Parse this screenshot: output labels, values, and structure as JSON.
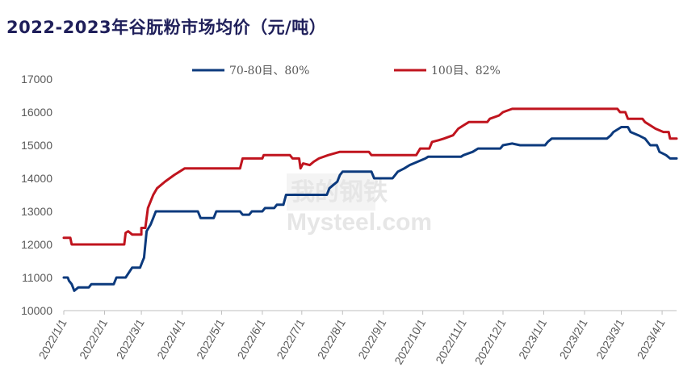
{
  "title": "2022-2023年谷朊粉市场均价（元/吨）",
  "watermark": {
    "cn": "我的钢铁",
    "en": "Mysteel.com"
  },
  "colors": {
    "series_70_80": "#0c3a7d",
    "series_100": "#c0141e",
    "axis": "#bfbfbf",
    "title": "#1f1f5a"
  },
  "chart_data": {
    "type": "line",
    "title": "2022-2023年谷朊粉市场均价（元/吨）",
    "xlabel": "",
    "ylabel": "",
    "ylim": [
      10000,
      17000
    ],
    "yticks": [
      10000,
      11000,
      12000,
      13000,
      14000,
      15000,
      16000,
      17000
    ],
    "ytick_labels": [
      "10000",
      "11000",
      "12000",
      "13000",
      "14000",
      "15000",
      "16000",
      "17000"
    ],
    "xlim": [
      "2022-01-01",
      "2023-04-12"
    ],
    "xtick_labels": [
      "2022/1/1",
      "2022/2/1",
      "2022/3/1",
      "2022/4/1",
      "2022/5/1",
      "2022/6/1",
      "2022/7/1",
      "2022/8/1",
      "2022/9/1",
      "2022/10/1",
      "2022/11/1",
      "2022/12/1",
      "2023/1/1",
      "2023/2/1",
      "2023/3/1",
      "2023/4/1"
    ],
    "xtick_dates": [
      "2022-01-01",
      "2022-02-01",
      "2022-03-01",
      "2022-04-01",
      "2022-05-01",
      "2022-06-01",
      "2022-07-01",
      "2022-08-01",
      "2022-09-01",
      "2022-10-01",
      "2022-11-01",
      "2022-12-01",
      "2023-01-01",
      "2023-02-01",
      "2023-03-01",
      "2023-04-01"
    ],
    "grid": false,
    "legend_position": "top",
    "series": [
      {
        "name": "70-80目、80%",
        "color": "#0c3a7d",
        "points": [
          [
            "2022-01-01",
            11000
          ],
          [
            "2022-01-04",
            11000
          ],
          [
            "2022-01-05",
            10900
          ],
          [
            "2022-01-07",
            10800
          ],
          [
            "2022-01-09",
            10600
          ],
          [
            "2022-01-12",
            10700
          ],
          [
            "2022-01-20",
            10700
          ],
          [
            "2022-01-22",
            10800
          ],
          [
            "2022-02-08",
            10800
          ],
          [
            "2022-02-10",
            11000
          ],
          [
            "2022-02-17",
            11000
          ],
          [
            "2022-02-22",
            11300
          ],
          [
            "2022-02-28",
            11300
          ],
          [
            "2022-03-02",
            11500
          ],
          [
            "2022-03-03",
            11600
          ],
          [
            "2022-03-05",
            12400
          ],
          [
            "2022-03-08",
            12600
          ],
          [
            "2022-03-10",
            12800
          ],
          [
            "2022-03-12",
            13000
          ],
          [
            "2022-04-13",
            13000
          ],
          [
            "2022-04-15",
            12800
          ],
          [
            "2022-04-25",
            12800
          ],
          [
            "2022-04-27",
            13000
          ],
          [
            "2022-05-15",
            13000
          ],
          [
            "2022-05-17",
            12900
          ],
          [
            "2022-05-22",
            12900
          ],
          [
            "2022-05-24",
            13000
          ],
          [
            "2022-06-01",
            13000
          ],
          [
            "2022-06-03",
            13100
          ],
          [
            "2022-06-10",
            13100
          ],
          [
            "2022-06-12",
            13200
          ],
          [
            "2022-06-17",
            13200
          ],
          [
            "2022-06-19",
            13500
          ],
          [
            "2022-07-20",
            13500
          ],
          [
            "2022-07-22",
            13700
          ],
          [
            "2022-07-25",
            13800
          ],
          [
            "2022-07-28",
            13900
          ],
          [
            "2022-07-30",
            14100
          ],
          [
            "2022-08-01",
            14200
          ],
          [
            "2022-08-23",
            14200
          ],
          [
            "2022-08-25",
            14000
          ],
          [
            "2022-09-08",
            14000
          ],
          [
            "2022-09-12",
            14200
          ],
          [
            "2022-09-17",
            14300
          ],
          [
            "2022-09-21",
            14400
          ],
          [
            "2022-09-27",
            14500
          ],
          [
            "2022-10-03",
            14600
          ],
          [
            "2022-10-05",
            14650
          ],
          [
            "2022-10-30",
            14650
          ],
          [
            "2022-11-01",
            14700
          ],
          [
            "2022-11-08",
            14800
          ],
          [
            "2022-11-12",
            14900
          ],
          [
            "2022-11-29",
            14900
          ],
          [
            "2022-12-01",
            15000
          ],
          [
            "2022-12-08",
            15050
          ],
          [
            "2022-12-14",
            15000
          ],
          [
            "2023-01-02",
            15000
          ],
          [
            "2023-01-04",
            15100
          ],
          [
            "2023-01-07",
            15200
          ],
          [
            "2023-02-18",
            15200
          ],
          [
            "2023-02-21",
            15300
          ],
          [
            "2023-02-23",
            15400
          ],
          [
            "2023-03-01",
            15550
          ],
          [
            "2023-03-06",
            15550
          ],
          [
            "2023-03-08",
            15400
          ],
          [
            "2023-03-14",
            15300
          ],
          [
            "2023-03-19",
            15200
          ],
          [
            "2023-03-23",
            15000
          ],
          [
            "2023-03-28",
            15000
          ],
          [
            "2023-03-30",
            14800
          ],
          [
            "2023-04-04",
            14700
          ],
          [
            "2023-04-07",
            14600
          ],
          [
            "2023-04-12",
            14600
          ]
        ]
      },
      {
        "name": "100目、82%",
        "color": "#c0141e",
        "points": [
          [
            "2022-01-01",
            12200
          ],
          [
            "2022-01-06",
            12200
          ],
          [
            "2022-01-07",
            12000
          ],
          [
            "2022-02-16",
            12000
          ],
          [
            "2022-02-17",
            12350
          ],
          [
            "2022-02-19",
            12400
          ],
          [
            "2022-02-22",
            12300
          ],
          [
            "2022-02-29",
            12300
          ],
          [
            "2022-03-01",
            12500
          ],
          [
            "2022-03-04",
            12500
          ],
          [
            "2022-03-06",
            13100
          ],
          [
            "2022-03-08",
            13300
          ],
          [
            "2022-03-10",
            13500
          ],
          [
            "2022-03-13",
            13700
          ],
          [
            "2022-03-19",
            13900
          ],
          [
            "2022-03-26",
            14100
          ],
          [
            "2022-04-03",
            14300
          ],
          [
            "2022-05-15",
            14300
          ],
          [
            "2022-05-17",
            14600
          ],
          [
            "2022-06-01",
            14600
          ],
          [
            "2022-06-02",
            14700
          ],
          [
            "2022-06-22",
            14700
          ],
          [
            "2022-06-24",
            14600
          ],
          [
            "2022-06-29",
            14600
          ],
          [
            "2022-06-30",
            14300
          ],
          [
            "2022-07-02",
            14450
          ],
          [
            "2022-07-07",
            14400
          ],
          [
            "2022-07-10",
            14500
          ],
          [
            "2022-07-14",
            14600
          ],
          [
            "2022-07-21",
            14700
          ],
          [
            "2022-07-30",
            14800
          ],
          [
            "2022-08-21",
            14800
          ],
          [
            "2022-08-23",
            14700
          ],
          [
            "2022-09-26",
            14700
          ],
          [
            "2022-09-29",
            14900
          ],
          [
            "2022-10-06",
            14900
          ],
          [
            "2022-10-08",
            15100
          ],
          [
            "2022-10-13",
            15150
          ],
          [
            "2022-10-17",
            15200
          ],
          [
            "2022-10-24",
            15300
          ],
          [
            "2022-10-28",
            15500
          ],
          [
            "2022-11-01",
            15600
          ],
          [
            "2022-11-05",
            15700
          ],
          [
            "2022-11-19",
            15700
          ],
          [
            "2022-11-21",
            15800
          ],
          [
            "2022-11-28",
            15900
          ],
          [
            "2022-12-01",
            16000
          ],
          [
            "2022-12-08",
            16100
          ],
          [
            "2023-02-26",
            16100
          ],
          [
            "2023-02-28",
            16000
          ],
          [
            "2023-03-04",
            16000
          ],
          [
            "2023-03-06",
            15800
          ],
          [
            "2023-03-17",
            15800
          ],
          [
            "2023-03-19",
            15700
          ],
          [
            "2023-03-23",
            15600
          ],
          [
            "2023-03-27",
            15500
          ],
          [
            "2023-04-02",
            15400
          ],
          [
            "2023-04-06",
            15400
          ],
          [
            "2023-04-07",
            15200
          ],
          [
            "2023-04-12",
            15200
          ]
        ]
      }
    ]
  }
}
